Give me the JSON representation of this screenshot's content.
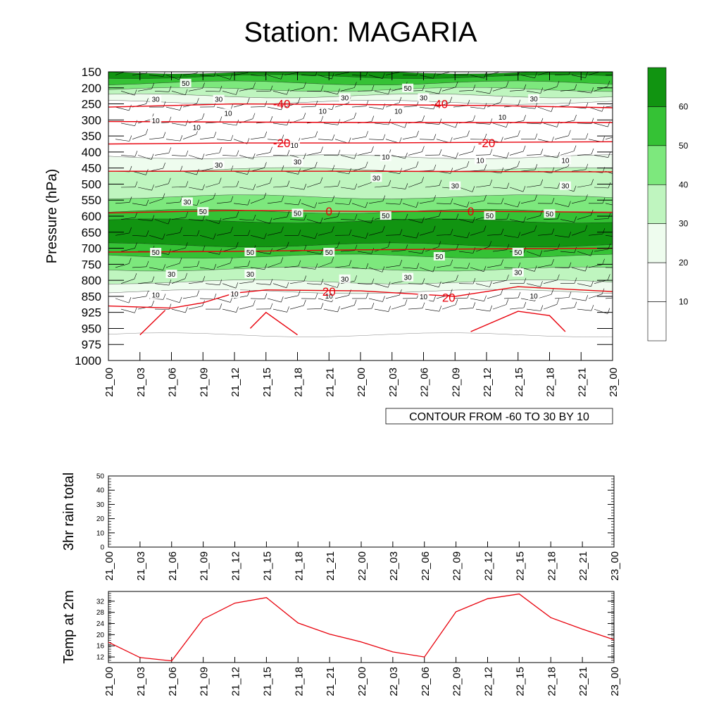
{
  "title": "Station: MAGARIA",
  "colors": {
    "axis": "#000000",
    "contour_line": "#e8000b",
    "temp_line": "#e8000b",
    "fill_levels": [
      "#ffffff",
      "#ffffff",
      "#eefcee",
      "#bff5bf",
      "#7de87d",
      "#35c235",
      "#119411"
    ]
  },
  "chart_data": [
    {
      "id": "cross_section",
      "type": "heatmap",
      "ylabel": "Pressure (hPa)",
      "pressure_levels": [
        150,
        200,
        250,
        300,
        350,
        400,
        450,
        500,
        550,
        600,
        650,
        700,
        750,
        800,
        850,
        925,
        950,
        975,
        1000
      ],
      "x_labels": [
        "21_00",
        "21_03",
        "21_06",
        "21_09",
        "21_12",
        "21_15",
        "21_18",
        "21_21",
        "22_00",
        "22_03",
        "22_06",
        "22_09",
        "22_12",
        "22_15",
        "22_18",
        "22_21",
        "23_00"
      ],
      "wind_speed_bands": [
        {
          "p_top": 150,
          "p_bot": 165,
          "level": 6
        },
        {
          "p_top": 165,
          "p_bot": 185,
          "level": 5
        },
        {
          "p_top": 185,
          "p_bot": 205,
          "level": 4
        },
        {
          "p_top": 205,
          "p_bot": 225,
          "level": 3
        },
        {
          "p_top": 225,
          "p_bot": 245,
          "level": 2
        },
        {
          "p_top": 245,
          "p_bot": 415,
          "level": 1
        },
        {
          "p_top": 415,
          "p_bot": 455,
          "level": 2
        },
        {
          "p_top": 455,
          "p_bot": 540,
          "level": 3
        },
        {
          "p_top": 540,
          "p_bot": 585,
          "level": 4
        },
        {
          "p_top": 585,
          "p_bot": 615,
          "level": 5
        },
        {
          "p_top": 615,
          "p_bot": 690,
          "level": 6
        },
        {
          "p_top": 690,
          "p_bot": 725,
          "level": 5
        },
        {
          "p_top": 725,
          "p_bot": 765,
          "level": 4
        },
        {
          "p_top": 765,
          "p_bot": 805,
          "level": 3
        },
        {
          "p_top": 805,
          "p_bot": 835,
          "level": 2
        },
        {
          "p_top": 835,
          "p_bot": 960,
          "level": 1
        }
      ],
      "wind_labels": [
        {
          "text": "50",
          "x": 2.45,
          "p": 185
        },
        {
          "text": "50",
          "x": 9.5,
          "p": 200
        },
        {
          "text": "30",
          "x": 1.5,
          "p": 235
        },
        {
          "text": "30",
          "x": 3.5,
          "p": 235
        },
        {
          "text": "30",
          "x": 7.5,
          "p": 230
        },
        {
          "text": "30",
          "x": 10,
          "p": 230
        },
        {
          "text": "30",
          "x": 13.5,
          "p": 233
        },
        {
          "text": "10",
          "x": 1.5,
          "p": 302
        },
        {
          "text": "10",
          "x": 3.8,
          "p": 278
        },
        {
          "text": "10",
          "x": 6.8,
          "p": 272
        },
        {
          "text": "10",
          "x": 9.2,
          "p": 272
        },
        {
          "text": "10",
          "x": 12.5,
          "p": 290
        },
        {
          "text": "10",
          "x": 2.8,
          "p": 322
        },
        {
          "text": "10",
          "x": 5.9,
          "p": 378
        },
        {
          "text": "10",
          "x": 8.8,
          "p": 415
        },
        {
          "text": "10",
          "x": 11.8,
          "p": 425
        },
        {
          "text": "10",
          "x": 14.5,
          "p": 425
        },
        {
          "text": "30",
          "x": 3.5,
          "p": 440
        },
        {
          "text": "30",
          "x": 6,
          "p": 430
        },
        {
          "text": "30",
          "x": 8.5,
          "p": 480
        },
        {
          "text": "30",
          "x": 11,
          "p": 505
        },
        {
          "text": "30",
          "x": 14.5,
          "p": 505
        },
        {
          "text": "30",
          "x": 2.5,
          "p": 555
        },
        {
          "text": "50",
          "x": 3,
          "p": 585
        },
        {
          "text": "50",
          "x": 6,
          "p": 590
        },
        {
          "text": "50",
          "x": 8.8,
          "p": 598
        },
        {
          "text": "50",
          "x": 12.1,
          "p": 598
        },
        {
          "text": "50",
          "x": 14,
          "p": 592
        },
        {
          "text": "50",
          "x": 1.5,
          "p": 712
        },
        {
          "text": "50",
          "x": 4.5,
          "p": 712
        },
        {
          "text": "50",
          "x": 7,
          "p": 712
        },
        {
          "text": "50",
          "x": 10.5,
          "p": 725
        },
        {
          "text": "50",
          "x": 13,
          "p": 712
        },
        {
          "text": "30",
          "x": 2,
          "p": 780
        },
        {
          "text": "30",
          "x": 4.5,
          "p": 780
        },
        {
          "text": "30",
          "x": 7.5,
          "p": 795
        },
        {
          "text": "30",
          "x": 9.5,
          "p": 790
        },
        {
          "text": "30",
          "x": 13,
          "p": 775
        },
        {
          "text": "10",
          "x": 1.5,
          "p": 845
        },
        {
          "text": "10",
          "x": 4,
          "p": 842
        },
        {
          "text": "10",
          "x": 7,
          "p": 848
        },
        {
          "text": "10",
          "x": 10,
          "p": 850
        },
        {
          "text": "10",
          "x": 13.5,
          "p": 848
        }
      ],
      "temperature_contours": [
        {
          "label": "-40",
          "points": [
            [
              0,
              260
            ],
            [
              4,
              250
            ],
            [
              8,
              252
            ],
            [
              12,
              255
            ],
            [
              16,
              262
            ]
          ]
        },
        {
          "label": "",
          "points": [
            [
              0,
              305
            ],
            [
              8,
              308
            ],
            [
              16,
              308
            ]
          ]
        },
        {
          "label": "-20",
          "points": [
            [
              0,
              375
            ],
            [
              4,
              372
            ],
            [
              8,
              372
            ],
            [
              12,
              370
            ],
            [
              16,
              368
            ]
          ]
        },
        {
          "label": "",
          "points": [
            [
              0,
              460
            ],
            [
              8,
              460
            ],
            [
              16,
              462
            ]
          ]
        },
        {
          "label": "0",
          "points": [
            [
              0,
              590
            ],
            [
              4,
              582
            ],
            [
              8,
              585
            ],
            [
              12,
              585
            ],
            [
              16,
              588
            ]
          ]
        },
        {
          "label": "",
          "points": [
            [
              0,
              712
            ],
            [
              4,
              710
            ],
            [
              8,
              705
            ],
            [
              12,
              702
            ],
            [
              16,
              700
            ]
          ]
        },
        {
          "label": "20",
          "points": [
            [
              0,
              895
            ],
            [
              2,
              905
            ],
            [
              3,
              880
            ],
            [
              4,
              840
            ],
            [
              5,
              830
            ],
            [
              8,
              833
            ],
            [
              11,
              850
            ],
            [
              13,
              820
            ],
            [
              16,
              835
            ]
          ]
        },
        {
          "label": "",
          "points": [
            [
              1,
              960
            ],
            [
              1.8,
              915
            ]
          ]
        },
        {
          "label": "",
          "points": [
            [
              4.5,
              950
            ],
            [
              5,
              925
            ],
            [
              6,
              960
            ]
          ]
        },
        {
          "label": "",
          "points": [
            [
              11.5,
              955
            ],
            [
              13,
              920
            ],
            [
              14,
              930
            ],
            [
              14.5,
              955
            ]
          ]
        }
      ],
      "temperature_labels": [
        {
          "text": "-40",
          "x": 5.5,
          "p": 250
        },
        {
          "text": "-40",
          "x": 10.5,
          "p": 250
        },
        {
          "text": "-20",
          "x": 5.5,
          "p": 372
        },
        {
          "text": "-20",
          "x": 12,
          "p": 372
        },
        {
          "text": "0",
          "x": 7,
          "p": 585
        },
        {
          "text": "0",
          "x": 11.5,
          "p": 585
        },
        {
          "text": "20",
          "x": 7,
          "p": 835
        },
        {
          "text": "20",
          "x": 10.8,
          "p": 855
        }
      ],
      "legend_levels": [
        "10",
        "20",
        "30",
        "40",
        "50",
        "60"
      ],
      "legend_note": "CONTOUR FROM -60 TO 30 BY 10"
    },
    {
      "id": "rain_total",
      "type": "line",
      "ylabel": "3hr rain total",
      "ylim": [
        0,
        50
      ],
      "y_ticks": [
        0,
        10,
        20,
        30,
        40,
        50
      ],
      "x_labels": [
        "21_00",
        "21_03",
        "21_06",
        "21_09",
        "21_12",
        "21_15",
        "21_18",
        "21_21",
        "22_00",
        "22_03",
        "22_06",
        "22_09",
        "22_12",
        "22_15",
        "22_18",
        "22_21",
        "23_00"
      ],
      "values": []
    },
    {
      "id": "temp_2m",
      "type": "line",
      "ylabel": "Temp at 2m",
      "ylim": [
        10,
        35.5
      ],
      "y_ticks": [
        12,
        16,
        20,
        24,
        28,
        32
      ],
      "x_labels": [
        "21_00",
        "21_03",
        "21_06",
        "21_09",
        "21_12",
        "21_15",
        "21_18",
        "21_21",
        "22_00",
        "22_03",
        "22_06",
        "22_09",
        "22_12",
        "22_15",
        "22_18",
        "22_21",
        "23_00"
      ],
      "values": [
        17.3,
        11.8,
        10.6,
        25.6,
        31.3,
        33.3,
        24.2,
        20.2,
        17.4,
        13.8,
        12.0,
        28.2,
        32.9,
        34.6,
        26.1,
        22.0,
        18.2
      ]
    }
  ]
}
